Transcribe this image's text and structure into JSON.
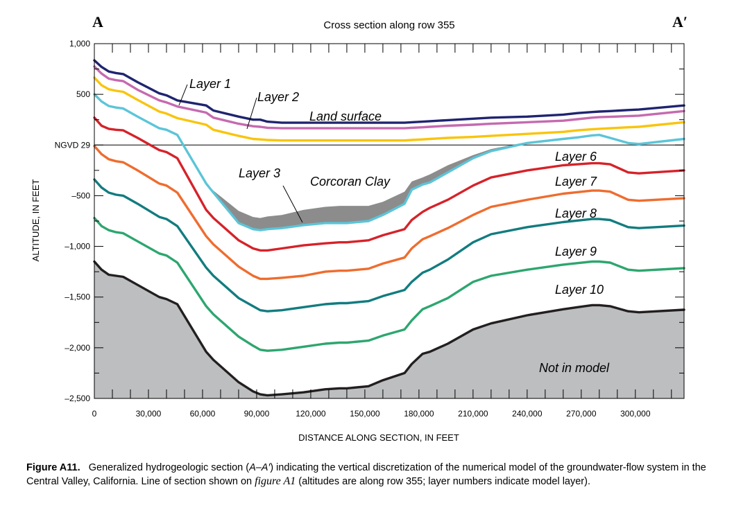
{
  "chart_data": {
    "type": "line",
    "title": "Cross section along row 355",
    "section_start_label": "A",
    "section_end_label": "A′",
    "xlabel": "DISTANCE ALONG SECTION, IN FEET",
    "ylabel": "ALTITUDE, IN FEET",
    "xlim": [
      0,
      327000
    ],
    "ylim": [
      -2500,
      1000
    ],
    "x_ticks": [
      {
        "value": 0,
        "label": "0"
      },
      {
        "value": 30000,
        "label": "30,000"
      },
      {
        "value": 60000,
        "label": "60,000"
      },
      {
        "value": 90000,
        "label": "90,000"
      },
      {
        "value": 120000,
        "label": "120,000"
      },
      {
        "value": 150000,
        "label": "150,000"
      },
      {
        "value": 180000,
        "label": "180,000"
      },
      {
        "value": 210000,
        "label": "210,000"
      },
      {
        "value": 240000,
        "label": "240,000"
      },
      {
        "value": 270000,
        "label": "270,000"
      },
      {
        "value": 300000,
        "label": "300,000"
      }
    ],
    "y_ticks": [
      {
        "value": 1000,
        "label": "1,000"
      },
      {
        "value": 500,
        "label": "500"
      },
      {
        "value": 0,
        "label": "NGVD 29"
      },
      {
        "value": -500,
        "label": "–500"
      },
      {
        "value": -1000,
        "label": "–1,000"
      },
      {
        "value": -1500,
        "label": "–1,500"
      },
      {
        "value": -2000,
        "label": "–2,000"
      },
      {
        "value": -2500,
        "label": "–2,500"
      }
    ],
    "x": [
      0,
      4000,
      8000,
      12000,
      16000,
      24000,
      36000,
      40000,
      46000,
      62000,
      66000,
      80000,
      88000,
      92000,
      96000,
      104000,
      116000,
      128000,
      136000,
      140000,
      152000,
      160000,
      172000,
      176000,
      182000,
      186000,
      196000,
      210000,
      220000,
      240000,
      260000,
      268000,
      276000,
      280000,
      286000,
      296000,
      302000,
      327000
    ],
    "series": [
      {
        "key": "land",
        "color": "#1f2470",
        "values": [
          835,
          770,
          725,
          710,
          700,
          620,
          510,
          490,
          440,
          390,
          340,
          280,
          250,
          250,
          230,
          220,
          220,
          220,
          220,
          220,
          220,
          220,
          220,
          225,
          230,
          235,
          245,
          260,
          270,
          280,
          300,
          315,
          325,
          330,
          335,
          345,
          350,
          390
        ]
      },
      {
        "key": "l1",
        "color": "#c56ab0",
        "values": [
          775,
          705,
          655,
          640,
          630,
          545,
          440,
          420,
          380,
          320,
          270,
          210,
          185,
          180,
          170,
          165,
          165,
          165,
          165,
          165,
          165,
          165,
          165,
          170,
          175,
          180,
          190,
          200,
          210,
          225,
          240,
          255,
          270,
          275,
          278,
          285,
          290,
          335
        ]
      },
      {
        "key": "l2",
        "color": "#f9c40c",
        "values": [
          665,
          590,
          550,
          535,
          525,
          445,
          330,
          310,
          265,
          200,
          150,
          90,
          60,
          55,
          50,
          45,
          45,
          45,
          45,
          45,
          45,
          45,
          45,
          50,
          55,
          60,
          70,
          80,
          90,
          110,
          130,
          145,
          155,
          160,
          165,
          175,
          180,
          225
        ]
      },
      {
        "key": "l3",
        "color": "#5bc5d8",
        "values": [
          500,
          430,
          385,
          370,
          360,
          280,
          165,
          150,
          100,
          -380,
          -470,
          -770,
          -830,
          -840,
          -830,
          -820,
          -790,
          -770,
          -770,
          -770,
          -750,
          -690,
          -580,
          -440,
          -390,
          -370,
          -270,
          -130,
          -60,
          20,
          60,
          75,
          95,
          100,
          70,
          20,
          10,
          60
        ]
      },
      {
        "key": "clay_top",
        "color": "#6b6b6b",
        "values": [
          500,
          430,
          385,
          370,
          360,
          280,
          165,
          150,
          100,
          -380,
          -450,
          -650,
          -710,
          -720,
          -705,
          -690,
          -640,
          -610,
          -600,
          -600,
          -600,
          -560,
          -460,
          -360,
          -320,
          -290,
          -200,
          -100,
          -40,
          30,
          70,
          80,
          95,
          100,
          70,
          20,
          10,
          60
        ]
      },
      {
        "key": "l6",
        "color": "#d62229",
        "values": [
          270,
          190,
          160,
          150,
          145,
          70,
          -50,
          -70,
          -130,
          -640,
          -720,
          -940,
          -1020,
          -1040,
          -1040,
          -1020,
          -990,
          -970,
          -960,
          -960,
          -940,
          -890,
          -830,
          -740,
          -660,
          -620,
          -540,
          -400,
          -320,
          -250,
          -200,
          -190,
          -180,
          -180,
          -190,
          -270,
          -280,
          -250
        ]
      },
      {
        "key": "l7",
        "color": "#ef6c2e",
        "values": [
          -10,
          -90,
          -140,
          -160,
          -170,
          -250,
          -380,
          -400,
          -470,
          -900,
          -980,
          -1200,
          -1290,
          -1320,
          -1320,
          -1310,
          -1290,
          -1250,
          -1240,
          -1240,
          -1220,
          -1170,
          -1110,
          -1020,
          -930,
          -900,
          -820,
          -690,
          -610,
          -540,
          -480,
          -465,
          -450,
          -450,
          -460,
          -540,
          -550,
          -525
        ]
      },
      {
        "key": "l8",
        "color": "#127c7f",
        "values": [
          -340,
          -420,
          -470,
          -490,
          -500,
          -580,
          -710,
          -730,
          -800,
          -1210,
          -1290,
          -1510,
          -1590,
          -1630,
          -1640,
          -1630,
          -1600,
          -1570,
          -1560,
          -1560,
          -1540,
          -1490,
          -1430,
          -1350,
          -1260,
          -1230,
          -1130,
          -960,
          -880,
          -810,
          -760,
          -745,
          -730,
          -730,
          -740,
          -810,
          -820,
          -795
        ]
      },
      {
        "key": "l9",
        "color": "#2da66f",
        "values": [
          -720,
          -800,
          -840,
          -860,
          -870,
          -950,
          -1070,
          -1090,
          -1160,
          -1590,
          -1670,
          -1890,
          -1980,
          -2020,
          -2030,
          -2020,
          -1990,
          -1960,
          -1950,
          -1950,
          -1930,
          -1880,
          -1820,
          -1730,
          -1620,
          -1590,
          -1510,
          -1350,
          -1290,
          -1230,
          -1180,
          -1165,
          -1150,
          -1150,
          -1160,
          -1230,
          -1240,
          -1215
        ]
      },
      {
        "key": "l10",
        "color": "#231f20",
        "values": [
          -1150,
          -1230,
          -1280,
          -1290,
          -1300,
          -1380,
          -1500,
          -1520,
          -1570,
          -2040,
          -2120,
          -2340,
          -2430,
          -2460,
          -2470,
          -2460,
          -2440,
          -2410,
          -2400,
          -2400,
          -2380,
          -2320,
          -2250,
          -2160,
          -2060,
          -2040,
          -1960,
          -1820,
          -1760,
          -1680,
          -1620,
          -1600,
          -1580,
          -1580,
          -1590,
          -1640,
          -1650,
          -1625
        ]
      }
    ],
    "annotations": {
      "layer1": "Layer 1",
      "layer2": "Layer 2",
      "land_surface": "Land surface",
      "layer3": "Layer 3",
      "corcoran_clay": "Corcoran Clay",
      "layer6": "Layer 6",
      "layer7": "Layer 7",
      "layer8": "Layer 8",
      "layer9": "Layer 9",
      "layer10": "Layer 10",
      "not_in_model": "Not in model"
    },
    "fill_colors": {
      "clay": "#8c8c8d",
      "not_in_model": "#bcbec0"
    },
    "grid": false
  },
  "caption": {
    "label": "Figure A11.",
    "part1": "Generalized hydrogeologic section (",
    "part2": "A–A′",
    "part3": ") indicating the vertical discretization of the numerical model of the groundwater-flow system in the Central Valley, California. Line of section shown on ",
    "part4": "figure A1",
    "part5": " (altitudes are along row 355; layer numbers indicate model layer)."
  }
}
